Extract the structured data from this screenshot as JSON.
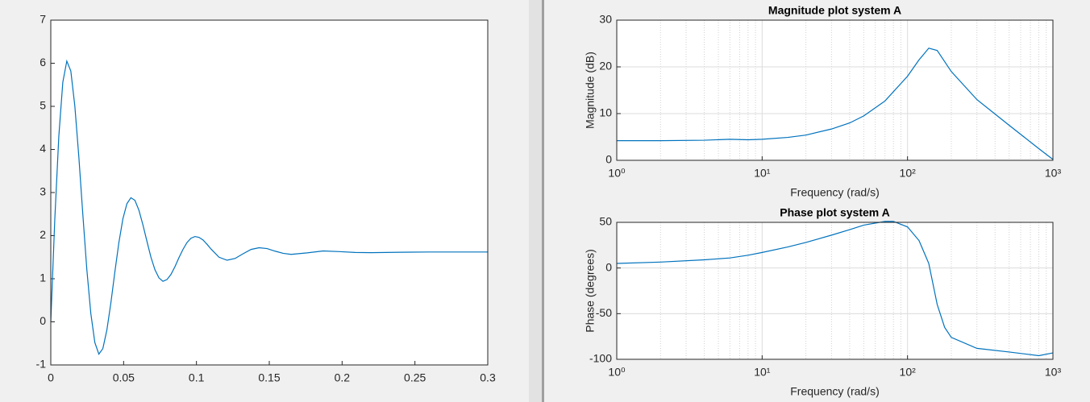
{
  "chart_data": [
    {
      "type": "line",
      "color": "#0072bd",
      "x": [
        0,
        0.00275,
        0.0055,
        0.00825,
        0.011,
        0.01375,
        0.0165,
        0.01925,
        0.022,
        0.02475,
        0.0275,
        0.03025,
        0.033,
        0.03575,
        0.0385,
        0.04125,
        0.044,
        0.04675,
        0.0495,
        0.05225,
        0.055,
        0.05775,
        0.0605,
        0.06325,
        0.066,
        0.06875,
        0.0715,
        0.07425,
        0.077,
        0.07975,
        0.0825,
        0.08525,
        0.088,
        0.09075,
        0.0935,
        0.09625,
        0.099,
        0.10175,
        0.1045,
        0.10725,
        0.11,
        0.1155,
        0.121,
        0.1265,
        0.132,
        0.1375,
        0.143,
        0.1485,
        0.154,
        0.1595,
        0.165,
        0.176,
        0.187,
        0.198,
        0.209,
        0.22,
        0.24,
        0.26,
        0.28,
        0.3
      ],
      "values": [
        0,
        2.38,
        4.3,
        5.56,
        6.05,
        5.82,
        5.01,
        3.83,
        2.49,
        1.21,
        0.19,
        -0.48,
        -0.75,
        -0.62,
        -0.19,
        0.44,
        1.16,
        1.84,
        2.39,
        2.74,
        2.88,
        2.82,
        2.59,
        2.25,
        1.87,
        1.5,
        1.21,
        1.02,
        0.94,
        0.98,
        1.1,
        1.28,
        1.49,
        1.68,
        1.84,
        1.94,
        1.98,
        1.96,
        1.9,
        1.8,
        1.69,
        1.5,
        1.43,
        1.47,
        1.58,
        1.68,
        1.72,
        1.7,
        1.64,
        1.59,
        1.565,
        1.6,
        1.645,
        1.63,
        1.61,
        1.605,
        1.615,
        1.62,
        1.62,
        1.62
      ],
      "xlim": [
        0,
        0.3
      ],
      "xticks": [
        0,
        0.05,
        0.1,
        0.15,
        0.2,
        0.25,
        0.3
      ],
      "ylim": [
        -1,
        7
      ],
      "yticks": [
        -1,
        0,
        1,
        2,
        3,
        4,
        5,
        6,
        7
      ],
      "grid": false
    },
    {
      "type": "line",
      "title": "Magnitude plot system A",
      "x_label": "Frequency (rad/s)",
      "y_label": "Magnitude (dB)",
      "color": "#0072bd",
      "xscale": "log",
      "grid": true,
      "minor_grid": true,
      "x": [
        1,
        2,
        4,
        6,
        8,
        10,
        15,
        20,
        30,
        40,
        50,
        70,
        100,
        120,
        140,
        160,
        200,
        300,
        500,
        800,
        1000
      ],
      "values": [
        4.2,
        4.2,
        4.3,
        4.5,
        4.4,
        4.5,
        4.9,
        5.4,
        6.7,
        8,
        9.5,
        12.7,
        18,
        21.5,
        24,
        23.5,
        19,
        13,
        7.5,
        2.5,
        0.2
      ],
      "xlim": [
        1,
        1000
      ],
      "xticks": [
        {
          "value": 1,
          "label": "10⁰"
        },
        {
          "value": 10,
          "label": "10¹"
        },
        {
          "value": 100,
          "label": "10²"
        },
        {
          "value": 1000,
          "label": "10³"
        }
      ],
      "ylim": [
        0,
        30
      ],
      "yticks": [
        0,
        10,
        20,
        30
      ]
    },
    {
      "type": "line",
      "title": "Phase plot system A",
      "x_label": "Frequency (rad/s)",
      "y_label": "Phase (degrees)",
      "color": "#0072bd",
      "xscale": "log",
      "grid": true,
      "minor_grid": true,
      "x": [
        1,
        2,
        4,
        6,
        8,
        10,
        15,
        20,
        30,
        40,
        50,
        70,
        80,
        100,
        120,
        140,
        160,
        180,
        200,
        300,
        500,
        800,
        1000
      ],
      "values": [
        5,
        6.5,
        9,
        11,
        14,
        17,
        23,
        28,
        36,
        42,
        47,
        51,
        51,
        45,
        30,
        5,
        -40,
        -65,
        -76,
        -88,
        -92,
        -96,
        -93
      ],
      "xlim": [
        1,
        1000
      ],
      "xticks": [
        {
          "value": 1,
          "label": "10⁰"
        },
        {
          "value": 10,
          "label": "10¹"
        },
        {
          "value": 100,
          "label": "10²"
        },
        {
          "value": 1000,
          "label": "10³"
        }
      ],
      "ylim": [
        -100,
        50
      ],
      "yticks": [
        -100,
        -50,
        0,
        50
      ]
    }
  ]
}
